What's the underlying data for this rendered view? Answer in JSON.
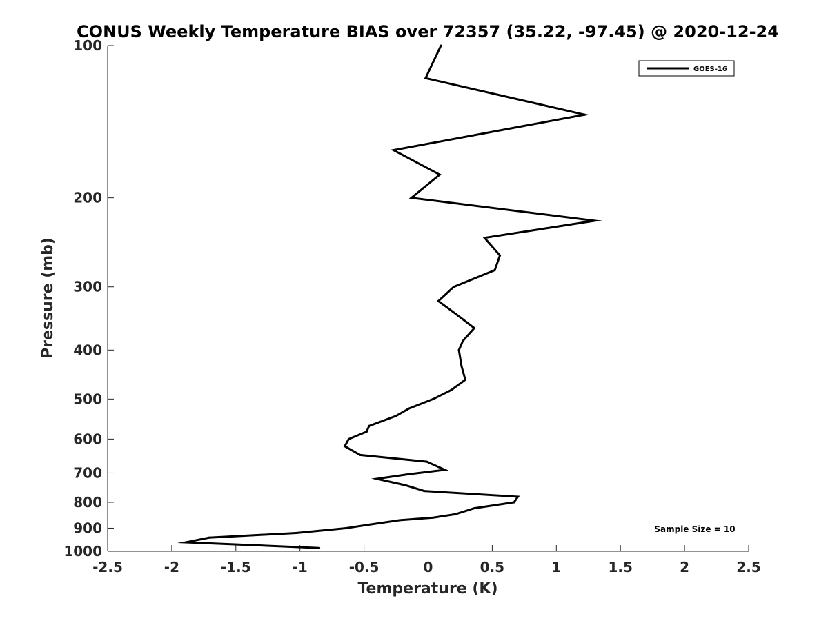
{
  "chart_data": {
    "type": "line",
    "title": "CONUS Weekly Temperature BIAS over 72357 (35.22, -97.45) @ 2020-12-24",
    "xlabel": "Temperature (K)",
    "ylabel": "Pressure (mb)",
    "xlim": [
      -2.5,
      2.5
    ],
    "ylim": [
      1000,
      100
    ],
    "yscale": "log",
    "y_reversed": true,
    "xticks": [
      -2.5,
      -2,
      -1.5,
      -1,
      -0.5,
      0,
      0.5,
      1,
      1.5,
      2,
      2.5
    ],
    "xtick_labels": [
      "-2.5",
      "-2",
      "-1.5",
      "-1",
      "-0.5",
      "0",
      "0.5",
      "1",
      "1.5",
      "2",
      "2.5"
    ],
    "yticks": [
      100,
      200,
      300,
      400,
      500,
      600,
      700,
      800,
      900,
      1000
    ],
    "ytick_labels": [
      "100",
      "200",
      "300",
      "400",
      "500",
      "600",
      "700",
      "800",
      "900",
      "1000"
    ],
    "grid": false,
    "legend_position": "top-right",
    "annotation": "Sample Size = 10",
    "series": [
      {
        "name": "GOES-16",
        "color": "#000000",
        "points": [
          {
            "x": 0.1,
            "y": 100
          },
          {
            "x": -0.02,
            "y": 116
          },
          {
            "x": 1.22,
            "y": 137
          },
          {
            "x": -0.27,
            "y": 161
          },
          {
            "x": 0.09,
            "y": 180
          },
          {
            "x": -0.13,
            "y": 200
          },
          {
            "x": 1.3,
            "y": 222
          },
          {
            "x": 0.44,
            "y": 240
          },
          {
            "x": 0.56,
            "y": 260
          },
          {
            "x": 0.52,
            "y": 278
          },
          {
            "x": 0.2,
            "y": 300
          },
          {
            "x": 0.08,
            "y": 320
          },
          {
            "x": 0.22,
            "y": 340
          },
          {
            "x": 0.36,
            "y": 362
          },
          {
            "x": 0.27,
            "y": 384
          },
          {
            "x": 0.24,
            "y": 400
          },
          {
            "x": 0.26,
            "y": 430
          },
          {
            "x": 0.29,
            "y": 458
          },
          {
            "x": 0.18,
            "y": 480
          },
          {
            "x": 0.04,
            "y": 500
          },
          {
            "x": -0.15,
            "y": 522
          },
          {
            "x": -0.25,
            "y": 540
          },
          {
            "x": -0.46,
            "y": 565
          },
          {
            "x": -0.48,
            "y": 580
          },
          {
            "x": -0.62,
            "y": 600
          },
          {
            "x": -0.65,
            "y": 620
          },
          {
            "x": -0.53,
            "y": 645
          },
          {
            "x": -0.01,
            "y": 665
          },
          {
            "x": 0.13,
            "y": 690
          },
          {
            "x": -0.15,
            "y": 704
          },
          {
            "x": -0.4,
            "y": 719
          },
          {
            "x": -0.18,
            "y": 740
          },
          {
            "x": -0.03,
            "y": 760
          },
          {
            "x": 0.7,
            "y": 780
          },
          {
            "x": 0.67,
            "y": 800
          },
          {
            "x": 0.36,
            "y": 822
          },
          {
            "x": 0.21,
            "y": 845
          },
          {
            "x": 0.04,
            "y": 858
          },
          {
            "x": -0.22,
            "y": 868
          },
          {
            "x": -0.45,
            "y": 885
          },
          {
            "x": -0.64,
            "y": 900
          },
          {
            "x": -1.03,
            "y": 920
          },
          {
            "x": -1.37,
            "y": 930
          },
          {
            "x": -1.71,
            "y": 940
          },
          {
            "x": -1.89,
            "y": 960
          },
          {
            "x": -0.85,
            "y": 985
          }
        ]
      }
    ]
  }
}
